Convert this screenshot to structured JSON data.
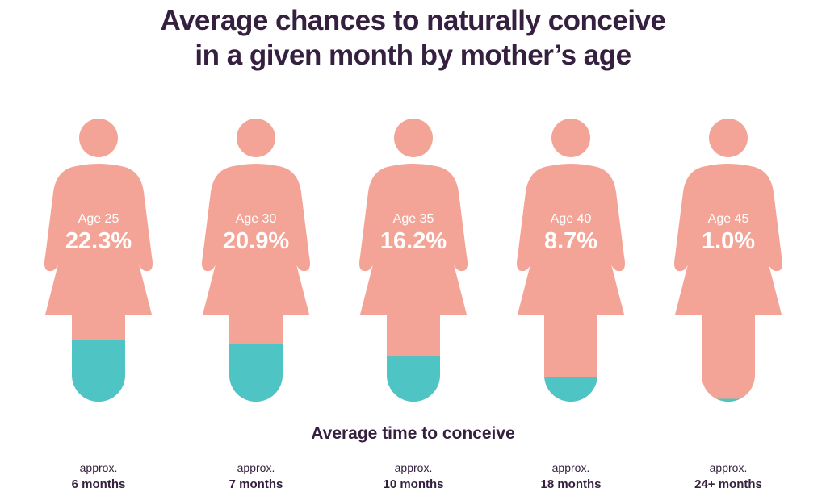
{
  "chart_data": {
    "type": "bar",
    "title_lines": [
      "Average chances to naturally conceive",
      "in a given month by mother’s age"
    ],
    "categories": [
      "Age 25",
      "Age 30",
      "Age 35",
      "Age 40",
      "Age 45"
    ],
    "values": [
      22.3,
      20.9,
      16.2,
      8.7,
      1.0
    ],
    "value_labels": [
      "22.3%",
      "20.9%",
      "16.2%",
      "8.7%",
      "1.0%"
    ],
    "unit": "%",
    "subtitle": "Average time to conceive",
    "time_prefix": "approx.",
    "time_to_conceive": [
      "6 months",
      "7 months",
      "10 months",
      "18 months",
      "24+ months"
    ],
    "colors": {
      "figure": "#f4a497",
      "fill": "#4ec4c4",
      "text": "#35213f",
      "label": "#ffffff"
    }
  }
}
